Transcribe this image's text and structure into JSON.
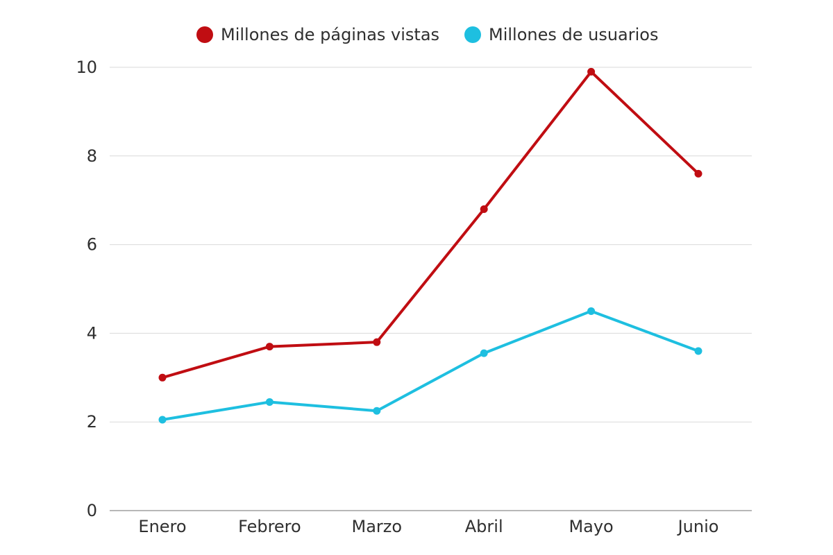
{
  "chart_data": {
    "type": "line",
    "title": "",
    "xlabel": "",
    "ylabel": "",
    "categories": [
      "Enero",
      "Febrero",
      "Marzo",
      "Abril",
      "Mayo",
      "Junio"
    ],
    "ylim": [
      0,
      10
    ],
    "yticks": [
      0,
      2,
      4,
      6,
      8,
      10
    ],
    "grid": true,
    "legend_position": "top-center",
    "series": [
      {
        "name": "Millones de páginas vistas",
        "color": "#c00d12",
        "values": [
          3.0,
          3.7,
          3.8,
          6.8,
          9.9,
          7.6
        ]
      },
      {
        "name": "Millones de usuarios",
        "color": "#1ebfe0",
        "values": [
          2.05,
          2.45,
          2.25,
          3.55,
          4.5,
          3.6
        ]
      }
    ]
  }
}
